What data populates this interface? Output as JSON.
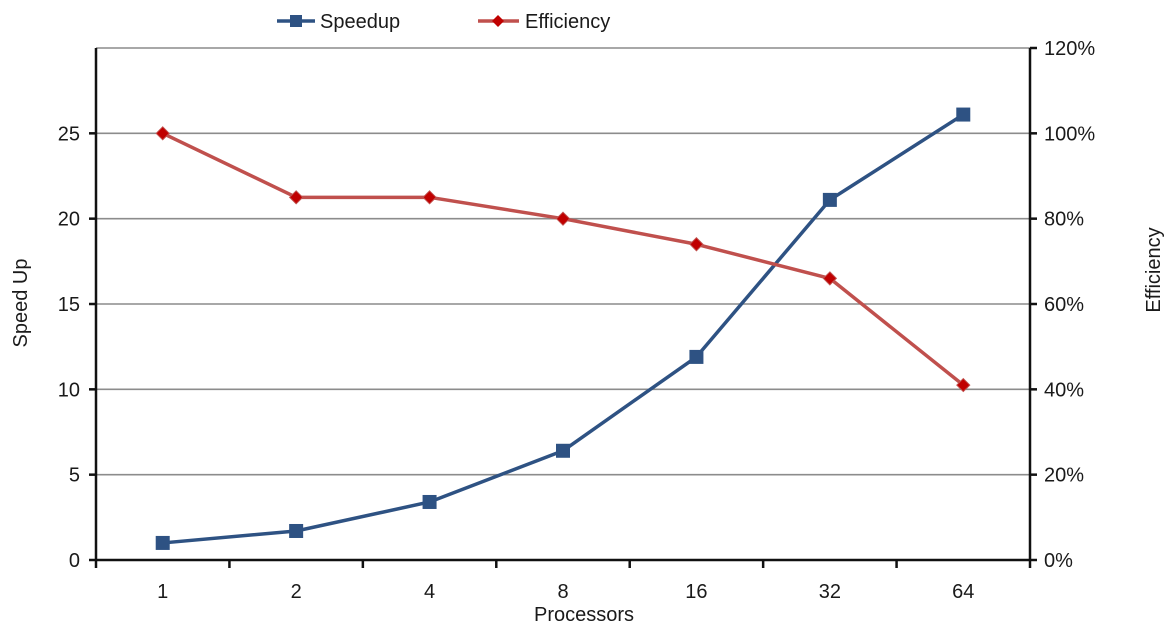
{
  "chart_data": {
    "type": "line",
    "title": "",
    "xlabel": "Processors",
    "ylabel": "Speed Up",
    "y2label": "Efficiency",
    "categories": [
      "1",
      "2",
      "4",
      "8",
      "16",
      "32",
      "64"
    ],
    "ylim": [
      0,
      30
    ],
    "y2lim": [
      0,
      1.2
    ],
    "y_ticks": [
      "0",
      "5",
      "10",
      "15",
      "20",
      "25"
    ],
    "y2_ticks": [
      "0%",
      "20%",
      "40%",
      "60%",
      "80%",
      "100%",
      "120%"
    ],
    "grid": true,
    "legend_position": "top",
    "series": [
      {
        "name": "Speedup",
        "axis": "left",
        "marker": "square",
        "color": "#2E5283",
        "values": [
          1.0,
          1.7,
          3.4,
          6.4,
          11.9,
          21.1,
          26.1
        ]
      },
      {
        "name": "Efficiency",
        "axis": "right",
        "marker": "diamond",
        "color": "#C0504D",
        "marker_color": "#C00000",
        "values": [
          1.0,
          0.85,
          0.85,
          0.8,
          0.74,
          0.66,
          0.41
        ]
      }
    ]
  }
}
